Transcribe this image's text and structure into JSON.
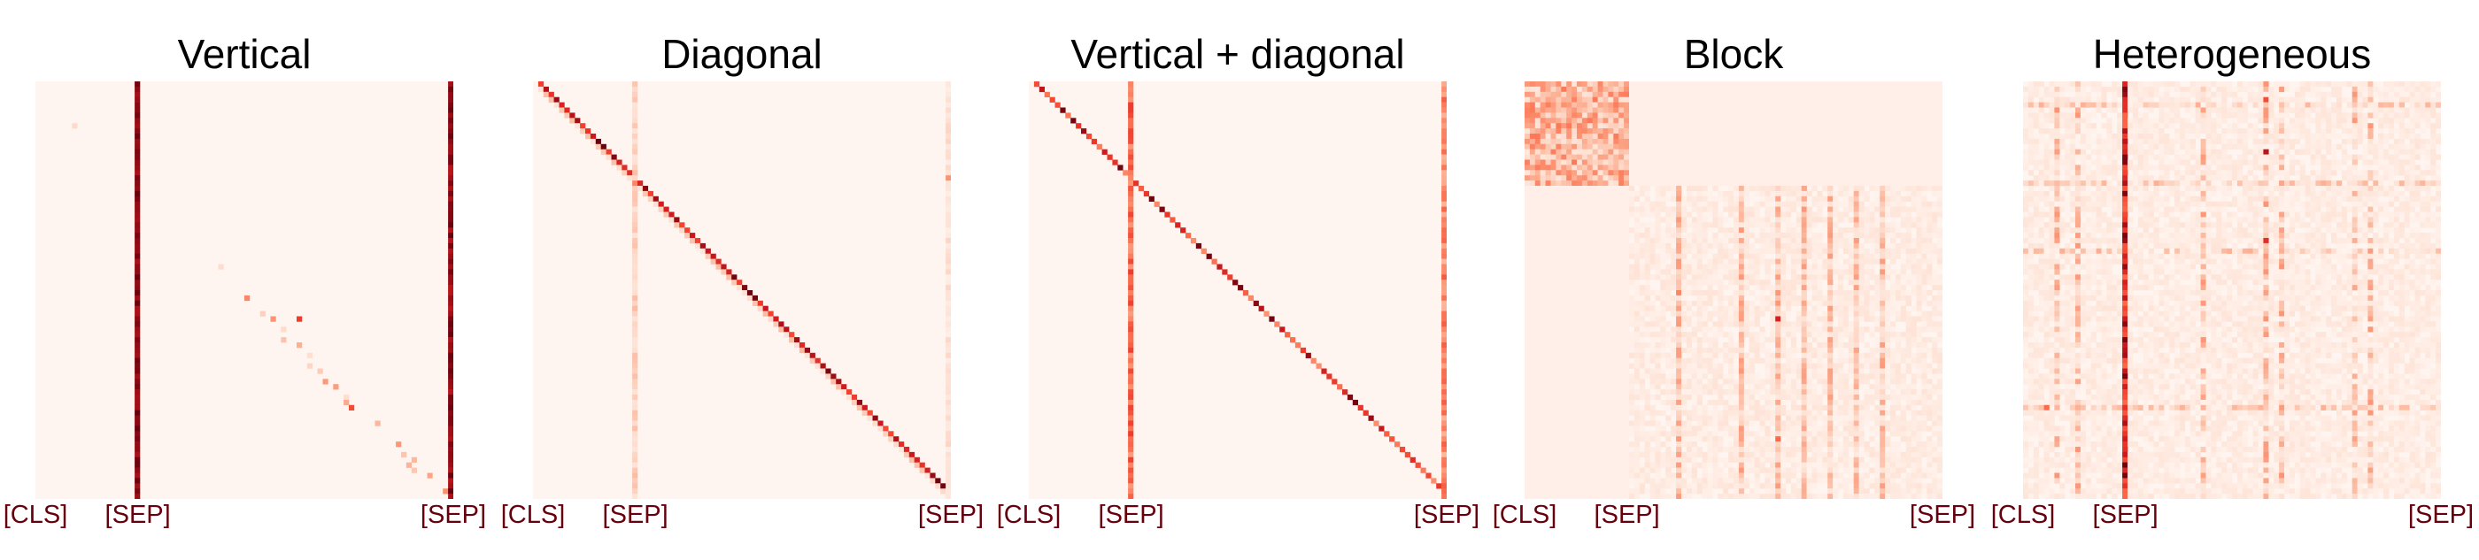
{
  "chart_data": [
    {
      "type": "heatmap",
      "title": "Vertical",
      "pattern": "vertical",
      "tick_labels": [
        "[CLS]",
        "[SEP]",
        "[SEP]"
      ],
      "tick_positions": [
        0.0,
        0.245,
        1.0
      ],
      "colormap": "Reds",
      "vmin": 0,
      "vmax": 1
    },
    {
      "type": "heatmap",
      "title": "Diagonal",
      "pattern": "diagonal",
      "tick_labels": [
        "[CLS]",
        "[SEP]",
        "[SEP]"
      ],
      "tick_positions": [
        0.0,
        0.245,
        1.0
      ],
      "colormap": "Reds",
      "vmin": 0,
      "vmax": 1
    },
    {
      "type": "heatmap",
      "title": "Vertical + diagonal",
      "pattern": "vertical-diagonal",
      "tick_labels": [
        "[CLS]",
        "[SEP]",
        "[SEP]"
      ],
      "tick_positions": [
        0.0,
        0.245,
        1.0
      ],
      "colormap": "Reds",
      "vmin": 0,
      "vmax": 1
    },
    {
      "type": "heatmap",
      "title": "Block",
      "pattern": "block",
      "tick_labels": [
        "[CLS]",
        "[SEP]",
        "[SEP]"
      ],
      "tick_positions": [
        0.0,
        0.245,
        1.0
      ],
      "colormap": "Reds",
      "vmin": 0,
      "vmax": 1
    },
    {
      "type": "heatmap",
      "title": "Heterogeneous",
      "pattern": "heterogeneous",
      "tick_labels": [
        "[CLS]",
        "[SEP]",
        "[SEP]"
      ],
      "tick_positions": [
        0.0,
        0.245,
        1.0
      ],
      "colormap": "Reds",
      "vmin": 0,
      "vmax": 1
    }
  ],
  "colors": {
    "low": "#fff5f0",
    "high": "#67000d",
    "tick_text": "#67000d",
    "title_text": "#000000"
  }
}
